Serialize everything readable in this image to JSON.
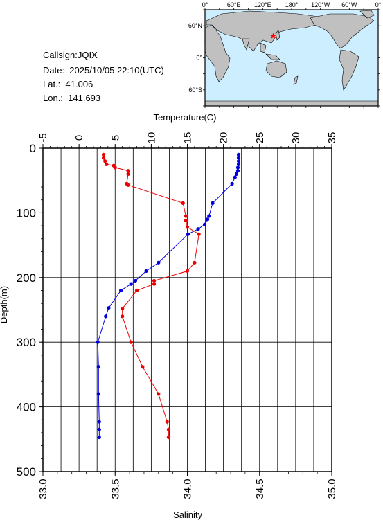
{
  "station": {
    "callsign": "Callsign:JQIX",
    "date": "Date:  2025/10/05 22:10(UTC)",
    "lat": "Lat.:  41.006",
    "lon": "Lon.:  141.693"
  },
  "map": {
    "top_labels": [
      "0°",
      "60°E",
      "120°E",
      "180°",
      "120°W",
      "60°W",
      "0°"
    ],
    "lat_labels": [
      "60°N",
      "0°",
      "60°S"
    ],
    "ocean_color": "#cceeff",
    "land_color": "#c0c0c0",
    "marker_color": "#ff0000",
    "marker_icon": "star-icon",
    "station_lon": 141.693,
    "station_lat": 41.006
  },
  "chart_data": {
    "type": "line",
    "x_top_label": "Temperature(C)",
    "x_top_range": [
      -5,
      35
    ],
    "x_top_ticks": [
      "-5",
      "0",
      "5",
      "10",
      "15",
      "20",
      "25",
      "30",
      "35"
    ],
    "x_bottom_label": "Salinity",
    "x_bottom_range": [
      33.0,
      35.0
    ],
    "x_bottom_ticks": [
      "33.0",
      "33.5",
      "34.0",
      "34.5",
      "35.0"
    ],
    "ylabel": "Depth(m)",
    "y_range": [
      0,
      500
    ],
    "y_ticks": [
      "0",
      "100",
      "200",
      "300",
      "400",
      "500"
    ],
    "y_inverted": true,
    "grid": true,
    "series": [
      {
        "axis": "temperature",
        "color": "#0000dd",
        "points": [
          [
            22.1,
            10
          ],
          [
            22.1,
            15
          ],
          [
            22.1,
            20
          ],
          [
            22.1,
            25
          ],
          [
            22.0,
            30
          ],
          [
            22.0,
            35
          ],
          [
            21.8,
            40
          ],
          [
            21.6,
            45
          ],
          [
            21.2,
            55
          ],
          [
            18.5,
            85
          ],
          [
            18.0,
            105
          ],
          [
            17.8,
            110
          ],
          [
            17.4,
            118
          ],
          [
            16.5,
            125
          ],
          [
            15.1,
            133
          ],
          [
            11.0,
            177
          ],
          [
            9.3,
            190
          ],
          [
            7.8,
            205
          ],
          [
            7.2,
            210
          ],
          [
            5.8,
            220
          ],
          [
            4.1,
            247
          ],
          [
            3.7,
            260
          ],
          [
            2.6,
            300
          ],
          [
            2.7,
            338
          ],
          [
            2.7,
            380
          ],
          [
            2.8,
            423
          ],
          [
            2.8,
            435
          ],
          [
            2.8,
            447
          ]
        ]
      },
      {
        "axis": "salinity",
        "color": "#ee0000",
        "points": [
          [
            33.42,
            10
          ],
          [
            33.42,
            15
          ],
          [
            33.43,
            20
          ],
          [
            33.44,
            25
          ],
          [
            33.49,
            27
          ],
          [
            33.5,
            30
          ],
          [
            33.59,
            35
          ],
          [
            33.59,
            40
          ],
          [
            33.58,
            55
          ],
          [
            33.59,
            57
          ],
          [
            33.97,
            85
          ],
          [
            33.99,
            105
          ],
          [
            33.99,
            112
          ],
          [
            34.0,
            122
          ],
          [
            34.08,
            133
          ],
          [
            34.05,
            177
          ],
          [
            34.0,
            190
          ],
          [
            33.77,
            205
          ],
          [
            33.77,
            210
          ],
          [
            33.65,
            220
          ],
          [
            33.55,
            248
          ],
          [
            33.55,
            260
          ],
          [
            33.61,
            300
          ],
          [
            33.69,
            338
          ],
          [
            33.8,
            380
          ],
          [
            33.86,
            423
          ],
          [
            33.87,
            435
          ],
          [
            33.87,
            447
          ]
        ]
      }
    ]
  }
}
